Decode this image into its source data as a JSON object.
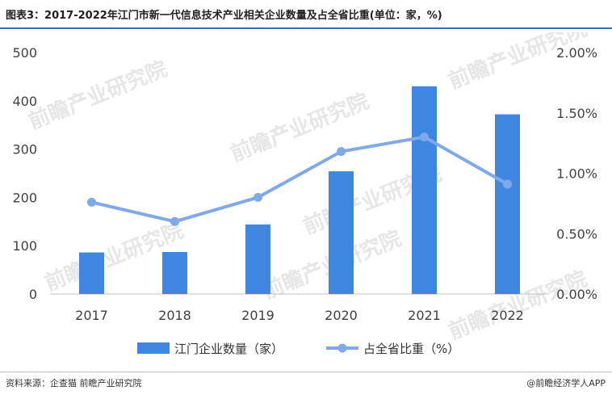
{
  "header": {
    "title": "图表3：2017-2022年江门市新一代信息技术产业相关企业数量及占全省比重(单位：家，%)"
  },
  "footer": {
    "source": "资料来源：企查猫 前瞻产业研究院",
    "credit": "@前瞻经济学人APP"
  },
  "watermark": "前瞻产业研究院",
  "colors": {
    "bar": "#3f86e0",
    "line": "#7fa9ea",
    "axis_text": "#404040"
  },
  "chart_data": {
    "type": "bar",
    "categories": [
      "2017",
      "2018",
      "2019",
      "2020",
      "2021",
      "2022"
    ],
    "series": [
      {
        "name": "江门企业数量（家）",
        "type": "bar",
        "axis": "left",
        "values": [
          86,
          87,
          144,
          254,
          430,
          372
        ]
      },
      {
        "name": "占全省比重（%）",
        "type": "line",
        "axis": "right",
        "values": [
          0.76,
          0.6,
          0.8,
          1.18,
          1.3,
          0.91
        ]
      }
    ],
    "left_axis": {
      "ylim": [
        0,
        500
      ],
      "ticks": [
        "0",
        "100",
        "200",
        "300",
        "400",
        "500"
      ]
    },
    "right_axis": {
      "ylim": [
        0,
        2.0
      ],
      "ticks": [
        "0.00%",
        "0.50%",
        "1.00%",
        "1.50%",
        "2.00%"
      ]
    },
    "grid": false,
    "legend": "bottom-center"
  }
}
